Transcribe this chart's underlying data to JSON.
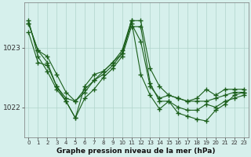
{
  "x": [
    0,
    1,
    2,
    3,
    4,
    5,
    6,
    7,
    8,
    9,
    10,
    11,
    12,
    13,
    14,
    15,
    16,
    17,
    18,
    19,
    20,
    21,
    22,
    23
  ],
  "line1": [
    1023.4,
    1022.95,
    1022.85,
    1022.55,
    1022.25,
    1022.1,
    1022.25,
    1022.45,
    1022.6,
    1022.75,
    1022.95,
    1023.45,
    1023.45,
    1022.65,
    1022.35,
    1022.2,
    1022.15,
    1022.1,
    1022.15,
    1022.3,
    1022.2,
    1022.3,
    1022.3,
    1022.3
  ],
  "line2": [
    1023.4,
    1022.95,
    1022.75,
    1022.35,
    1022.15,
    1022.1,
    1022.3,
    1022.45,
    1022.55,
    1022.7,
    1022.9,
    1023.4,
    1023.1,
    1022.35,
    1022.15,
    1022.2,
    1022.15,
    1022.1,
    1022.1,
    1022.1,
    1022.15,
    1022.2,
    1022.25,
    1022.25
  ],
  "line3": [
    1023.25,
    1022.75,
    1022.7,
    1022.35,
    1022.1,
    1021.82,
    1022.15,
    1022.3,
    1022.5,
    1022.65,
    1022.85,
    1023.35,
    1023.35,
    1022.4,
    1022.1,
    1022.1,
    1022.0,
    1021.95,
    1021.95,
    1022.05,
    1022.0,
    1022.1,
    1022.15,
    1022.2
  ],
  "line4": [
    1023.45,
    1022.85,
    1022.6,
    1022.3,
    1022.1,
    1021.82,
    1022.35,
    1022.55,
    1022.6,
    1022.75,
    1022.9,
    1023.45,
    1022.55,
    1022.2,
    1021.97,
    1022.1,
    1021.9,
    1021.85,
    1021.8,
    1021.77,
    1021.95,
    1022.05,
    1022.2,
    1022.25
  ],
  "background_color": "#d6f0ec",
  "grid_color": "#b0d4cc",
  "line_color1": "#1a5e1a",
  "line_color2": "#1a5e1a",
  "title": "Graphe pression niveau de la mer (hPa)",
  "yticks": [
    1022,
    1023
  ],
  "ylim": [
    1021.5,
    1023.75
  ],
  "xlim": [
    -0.5,
    23.5
  ],
  "xticks": [
    0,
    1,
    2,
    3,
    4,
    5,
    6,
    7,
    8,
    9,
    10,
    11,
    12,
    13,
    14,
    15,
    16,
    17,
    18,
    19,
    20,
    21,
    22,
    23
  ]
}
